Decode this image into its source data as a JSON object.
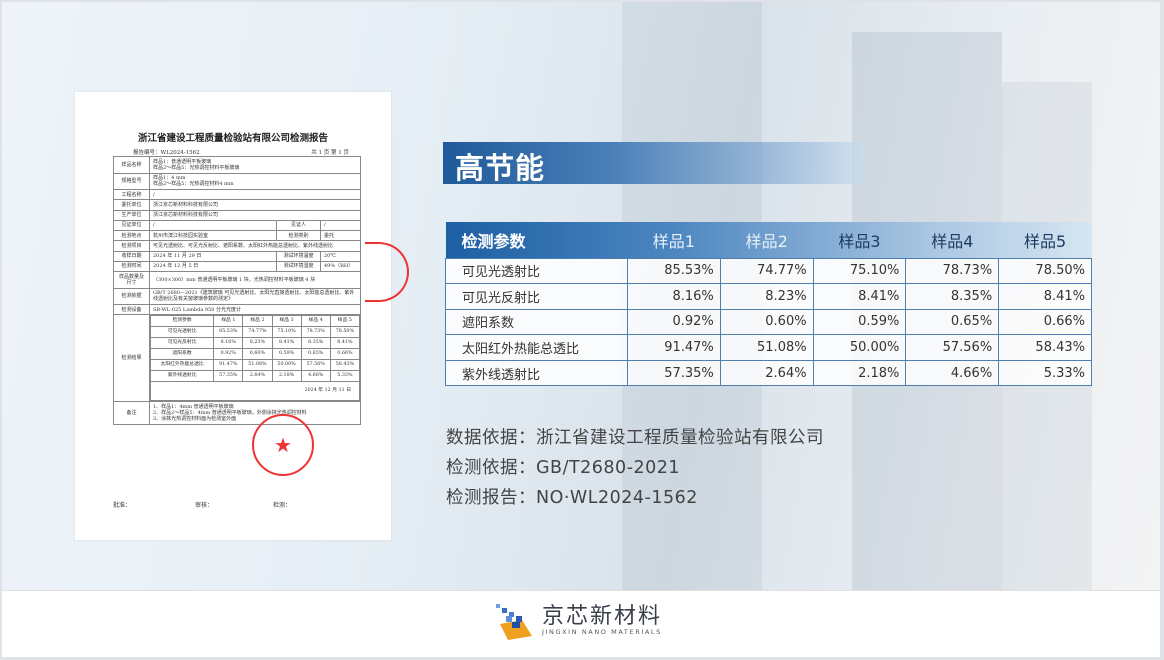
{
  "report": {
    "title": "浙江省建设工程质量检验站有限公司检测报告",
    "report_no": "报告编号：WL2024-1562",
    "page": "共 1 页  第 1 页",
    "rows": [
      {
        "k": "样品名称",
        "v": "样品1：普通透明平板玻璃\n样品2～样品5：光热调控材料平板玻璃"
      },
      {
        "k": "规格型号",
        "v": "样品1：4 mm\n样品2～样品5：光热调控材料4 mm"
      },
      {
        "k": "工程名称",
        "v": "/"
      },
      {
        "k": "委托单位",
        "v": "浙江京芯新材料科技有限公司"
      },
      {
        "k": "生产单位",
        "v": "浙江京芯新材料科技有限公司"
      }
    ],
    "witness_unit_k": "见证单位",
    "witness_unit_v": "/",
    "witness_k": "见证人",
    "witness_v": "/",
    "location_k": "检测地点",
    "location_v": "杭州市滨江科技园实验室",
    "type_k": "检测类别",
    "type_v": "委托",
    "items_k": "检测项目",
    "items_v": "可见光透射比、可见光反射比、遮阳系数、太阳红外热能总透射比、紫外线透射比",
    "sample_date_k": "收样日期",
    "sample_date_v": "2024 年 11 月 29 日",
    "temp_k": "测试环境温度",
    "temp_v": "20℃",
    "test_date_k": "检测时间",
    "test_date_v": "2024 年 12 月 5 日",
    "hum_k": "测试环境湿度",
    "hum_v": "49%（RH）",
    "qty_k": "样品数量及尺寸",
    "qty_v": "（300×300）mm 普通透明平板玻璃 1 块，光热调控材料平板玻璃 4 块",
    "basis_k": "检测依据",
    "basis_v": "GB/T 2680—2021《建筑玻璃 可见光透射比、太阳光直接透射比、太阳能总透射比、紫外线透射比及有关窗玻璃参数的测定》",
    "equip_k": "检测设备",
    "equip_v": "SB-WL-025     Lambda 950 分光光度计",
    "result_k": "检测结果",
    "result_header": [
      "检测参数",
      "样品 1",
      "样品 2",
      "样品 3",
      "样品 4",
      "样品 5"
    ],
    "result_date": "2024 年 12 月 11 日",
    "notes_k": "备注",
    "notes": [
      "1、样品1：4mm 普通透明平板玻璃",
      "2、样品2～样品5：4mm 普通透明平板玻璃，外侧涂抹光热调控材料",
      "3、涂抹光热调控材料面为检测室外面"
    ],
    "approve": "批准：",
    "review": "审核：",
    "tester": "检测：",
    "stamp_text": "检验检测专用章"
  },
  "section_title": "高节能",
  "table": {
    "headers": [
      "检测参数",
      "样品1",
      "样品2",
      "样品3",
      "样品4",
      "样品5"
    ],
    "rows": [
      {
        "param": "可见光透射比",
        "values": [
          "85.53%",
          "74.77%",
          "75.10%",
          "78.73%",
          "78.50%"
        ]
      },
      {
        "param": "可见光反射比",
        "values": [
          "8.16%",
          "8.23%",
          "8.41%",
          "8.35%",
          "8.41%"
        ]
      },
      {
        "param": "遮阳系数",
        "values": [
          "0.92%",
          "0.60%",
          "0.59%",
          "0.65%",
          "0.66%"
        ]
      },
      {
        "param": "太阳红外热能总透比",
        "values": [
          "91.47%",
          "51.08%",
          "50.00%",
          "57.56%",
          "58.43%"
        ]
      },
      {
        "param": "紫外线透射比",
        "values": [
          "57.35%",
          "2.64%",
          "2.18%",
          "4.66%",
          "5.33%"
        ]
      }
    ]
  },
  "info": [
    "数据依据：浙江省建设工程质量检验站有限公司",
    "检测依据：GB/T2680-2021",
    "检测报告：NO·WL2024-1562"
  ],
  "logo": {
    "cn": "京芯新材料",
    "en": "JINGXIN NANO MATERIALS"
  },
  "colors": {
    "accent": "#1c5fa3",
    "stamp": "#e33333"
  }
}
